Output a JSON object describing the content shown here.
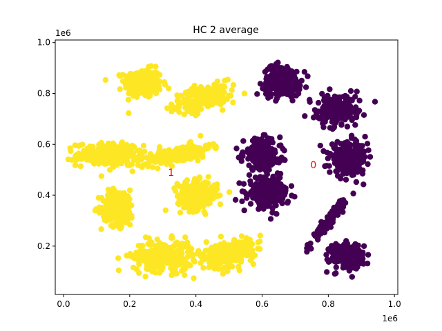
{
  "chart_data": {
    "type": "scatter",
    "title": "HC 2 average",
    "xlabel": "",
    "ylabel": "",
    "x_scale_label": "1e6",
    "y_scale_label": "1e6",
    "xlim": [
      -0.025,
      1.01
    ],
    "ylim": [
      0.01,
      1.01
    ],
    "x_ticks": [
      0.0,
      0.2,
      0.4,
      0.6,
      0.8,
      1.0
    ],
    "x_tick_labels": [
      "0.0",
      "0.2",
      "0.4",
      "0.6",
      "0.8",
      "1.0"
    ],
    "y_ticks": [
      0.2,
      0.4,
      0.6,
      0.8,
      1.0
    ],
    "y_tick_labels": [
      "0.2",
      "0.4",
      "0.6",
      "0.8",
      "1.0"
    ],
    "grid": false,
    "legend": "none",
    "colors": {
      "cluster_1": "#fde725",
      "cluster_0": "#440154",
      "annotation": "#ff0000"
    },
    "clusters": [
      {
        "label": "1",
        "color": "#fde725",
        "centroid": [
          0.325,
          0.49
        ],
        "groups": [
          {
            "cx": 0.24,
            "cy": 0.84,
            "sx": 0.028,
            "sy": 0.028,
            "rot": 0.0,
            "n": 260
          },
          {
            "cx": 0.42,
            "cy": 0.78,
            "sx": 0.045,
            "sy": 0.022,
            "rot": 0.35,
            "n": 220
          },
          {
            "cx": 0.14,
            "cy": 0.56,
            "sx": 0.05,
            "sy": 0.022,
            "rot": 0.0,
            "n": 280
          },
          {
            "cx": 0.35,
            "cy": 0.56,
            "sx": 0.05,
            "sy": 0.015,
            "rot": 0.3,
            "n": 220
          },
          {
            "cx": 0.165,
            "cy": 0.35,
            "sx": 0.025,
            "sy": 0.035,
            "rot": 0.0,
            "n": 230
          },
          {
            "cx": 0.405,
            "cy": 0.4,
            "sx": 0.03,
            "sy": 0.028,
            "rot": 0.0,
            "n": 240
          },
          {
            "cx": 0.3,
            "cy": 0.16,
            "sx": 0.045,
            "sy": 0.03,
            "rot": 0.0,
            "n": 290
          },
          {
            "cx": 0.5,
            "cy": 0.17,
            "sx": 0.04,
            "sy": 0.025,
            "rot": 0.4,
            "n": 270
          }
        ]
      },
      {
        "label": "0",
        "color": "#440154",
        "centroid": [
          0.755,
          0.52
        ],
        "groups": [
          {
            "cx": 0.66,
            "cy": 0.85,
            "sx": 0.028,
            "sy": 0.03,
            "rot": 0.0,
            "n": 260
          },
          {
            "cx": 0.825,
            "cy": 0.735,
            "sx": 0.028,
            "sy": 0.03,
            "rot": -0.3,
            "n": 250
          },
          {
            "cx": 0.6,
            "cy": 0.56,
            "sx": 0.028,
            "sy": 0.03,
            "rot": 0.0,
            "n": 240
          },
          {
            "cx": 0.86,
            "cy": 0.545,
            "sx": 0.028,
            "sy": 0.03,
            "rot": 0.0,
            "n": 260
          },
          {
            "cx": 0.62,
            "cy": 0.41,
            "sx": 0.03,
            "sy": 0.03,
            "rot": 0.0,
            "n": 250
          },
          {
            "cx": 0.8,
            "cy": 0.3,
            "sx": 0.05,
            "sy": 0.006,
            "rot": 1.05,
            "n": 140
          },
          {
            "cx": 0.855,
            "cy": 0.16,
            "sx": 0.025,
            "sy": 0.025,
            "rot": 0.0,
            "n": 240
          }
        ]
      }
    ]
  }
}
